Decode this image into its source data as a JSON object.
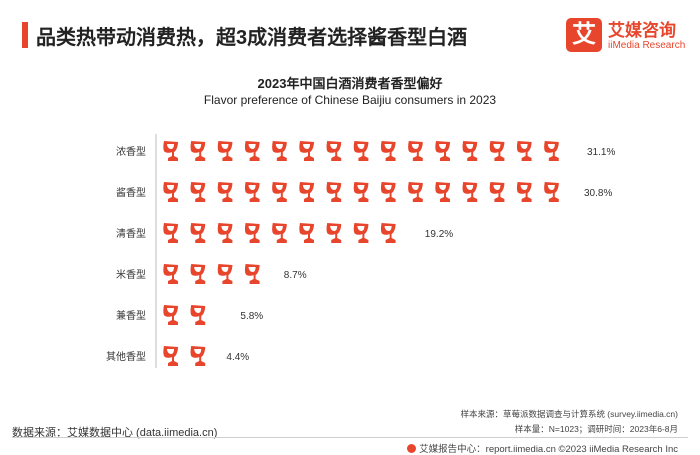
{
  "header": {
    "headline": "品类热带动消费热，超3成消费者选择酱香型白酒"
  },
  "logo": {
    "mark": "艾",
    "name": "艾媒咨询",
    "sub": "iiMedia Research"
  },
  "chart_data": {
    "type": "bar",
    "orientation": "horizontal",
    "title": "2023年中国白酒消费者香型偏好",
    "subtitle": "Flavor preference of Chinese Baijiu consumers in 2023",
    "categories": [
      "浓香型",
      "酱香型",
      "清香型",
      "米香型",
      "兼香型",
      "其他香型"
    ],
    "values": [
      31.1,
      30.8,
      19.2,
      8.7,
      5.8,
      4.4
    ],
    "value_labels": [
      "31.1%",
      "30.8%",
      "19.2%",
      "8.7%",
      "5.8%",
      "4.4%"
    ],
    "unit": "%",
    "icon": "wine-glass-icon",
    "percent_per_icon": 2,
    "color": "#e8462c"
  },
  "footer": {
    "source": "数据来源：艾媒数据中心 (data.iimedia.cn)",
    "sample_source": "样本来源：草莓派数据调查与计算系统 (survey.iimedia.cn)",
    "sample_info": "样本量：N=1023；调研时间：2023年6-8月",
    "copyright": "艾媒报告中心：report.iimedia.cn  ©2023  iiMedia Research  Inc"
  }
}
